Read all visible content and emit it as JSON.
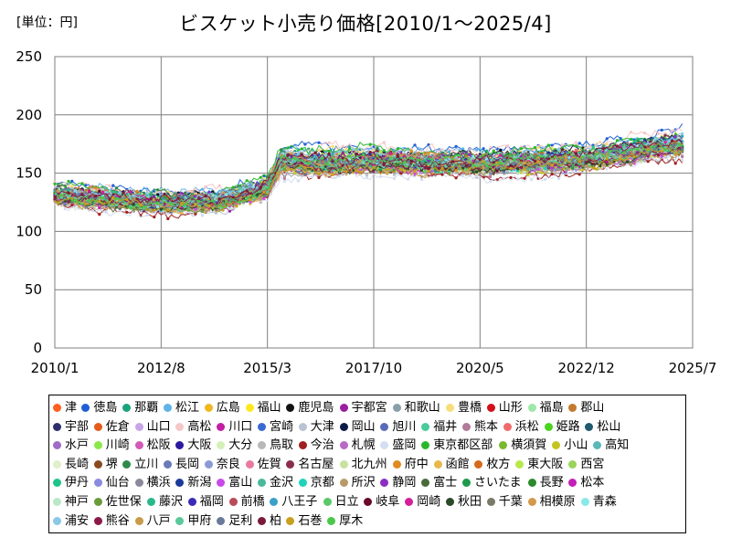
{
  "unit_label": "[単位：円]",
  "title": "ビスケット小売り価格[2010/1〜2025/4]",
  "chart_data": {
    "type": "line",
    "title": "ビスケット小売り価格[2010/1〜2025/4]",
    "unit": "円",
    "x_range": [
      "2010/1",
      "2025/7"
    ],
    "x_tick_labels": [
      "2010/1",
      "2012/8",
      "2015/3",
      "2017/10",
      "2020/5",
      "2022/12",
      "2025/7"
    ],
    "y_range": [
      0,
      250
    ],
    "y_tick_labels": [
      "0",
      "50",
      "100",
      "150",
      "200",
      "250"
    ],
    "grid": true,
    "legend_position": "bottom",
    "series_level_anchors": [
      {
        "date": "2010/1",
        "value": 131
      },
      {
        "date": "2012/8",
        "value": 124
      },
      {
        "date": "2014/1",
        "value": 126
      },
      {
        "date": "2015/3",
        "value": 137
      },
      {
        "date": "2015/7",
        "value": 159
      },
      {
        "date": "2017/10",
        "value": 160
      },
      {
        "date": "2020/5",
        "value": 158
      },
      {
        "date": "2022/12",
        "value": 162
      },
      {
        "date": "2025/4",
        "value": 174
      }
    ],
    "series": [
      {
        "name": "津",
        "color": "#ff5f1f",
        "offset": 3
      },
      {
        "name": "徳島",
        "color": "#1f5fd6",
        "offset": 10
      },
      {
        "name": "那覇",
        "color": "#1aa37a",
        "offset": 4
      },
      {
        "name": "松江",
        "color": "#5fb3e8",
        "offset": 7
      },
      {
        "name": "広島",
        "color": "#f0b81f",
        "offset": 2
      },
      {
        "name": "福山",
        "color": "#ffe81f",
        "offset": 1
      },
      {
        "name": "鹿児島",
        "color": "#111111",
        "offset": 5
      },
      {
        "name": "宇都宮",
        "color": "#9a1fa0",
        "offset": -2
      },
      {
        "name": "和歌山",
        "color": "#8aa0a8",
        "offset": -3
      },
      {
        "name": "豊橋",
        "color": "#f7de7a",
        "offset": 6
      },
      {
        "name": "山形",
        "color": "#d4101a",
        "offset": 0
      },
      {
        "name": "福島",
        "color": "#9de8a8",
        "offset": 1
      },
      {
        "name": "郡山",
        "color": "#c47a2e",
        "offset": -4
      },
      {
        "name": "宇部",
        "color": "#2e2e6e",
        "offset": 2
      },
      {
        "name": "佐倉",
        "color": "#e65a1a",
        "offset": -1
      },
      {
        "name": "山口",
        "color": "#c9a4e8",
        "offset": 3
      },
      {
        "name": "高松",
        "color": "#f5c7c7",
        "offset": 9
      },
      {
        "name": "川口",
        "color": "#c41fa4",
        "offset": -3
      },
      {
        "name": "宮崎",
        "color": "#3a6ad4",
        "offset": 0
      },
      {
        "name": "大津",
        "color": "#b8c4d4",
        "offset": -5
      },
      {
        "name": "岡山",
        "color": "#0c1a4a",
        "offset": 4
      },
      {
        "name": "旭川",
        "color": "#5a6ab8",
        "offset": 1
      },
      {
        "name": "福井",
        "color": "#4acb9a",
        "offset": -2
      },
      {
        "name": "熊本",
        "color": "#b47a9a",
        "offset": -6
      },
      {
        "name": "浜松",
        "color": "#f06a6a",
        "offset": 2
      },
      {
        "name": "姫路",
        "color": "#4ad41f",
        "offset": -1
      },
      {
        "name": "松山",
        "color": "#1f5a6e",
        "offset": 3
      },
      {
        "name": "水戸",
        "color": "#a06ac8",
        "offset": -3
      },
      {
        "name": "川崎",
        "color": "#8ae84a",
        "offset": 1
      },
      {
        "name": "松阪",
        "color": "#d45ab8",
        "offset": -2
      },
      {
        "name": "大阪",
        "color": "#2a1aa0",
        "offset": 0
      },
      {
        "name": "大分",
        "color": "#d4f0b8",
        "offset": -4
      },
      {
        "name": "鳥取",
        "color": "#b8b8b8",
        "offset": -5
      },
      {
        "name": "今治",
        "color": "#a01f1f",
        "offset": -7
      },
      {
        "name": "札幌",
        "color": "#b86ac4",
        "offset": 1
      },
      {
        "name": "盛岡",
        "color": "#d4def0",
        "offset": -8
      },
      {
        "name": "東京都区部",
        "color": "#2ab82a",
        "offset": 8
      },
      {
        "name": "横須賀",
        "color": "#7ab82e",
        "offset": 2
      },
      {
        "name": "小山",
        "color": "#c4c41f",
        "offset": -3
      },
      {
        "name": "高知",
        "color": "#5ab8b8",
        "offset": 0
      },
      {
        "name": "長崎",
        "color": "#e0f0c8",
        "offset": -1
      },
      {
        "name": "堺",
        "color": "#8a4a1f",
        "offset": -2
      },
      {
        "name": "立川",
        "color": "#2e8a4a",
        "offset": 4
      },
      {
        "name": "長岡",
        "color": "#6a7ab8",
        "offset": -3
      },
      {
        "name": "奈良",
        "color": "#8a9ad4",
        "offset": 1
      },
      {
        "name": "佐賀",
        "color": "#e87aa0",
        "offset": -1
      },
      {
        "name": "名古屋",
        "color": "#8a2e4a",
        "offset": 2
      },
      {
        "name": "北九州",
        "color": "#c8e0a0",
        "offset": -2
      },
      {
        "name": "府中",
        "color": "#e08a1f",
        "offset": 3
      },
      {
        "name": "函館",
        "color": "#e8b84a",
        "offset": -4
      },
      {
        "name": "枚方",
        "color": "#d46a1a",
        "offset": 0
      },
      {
        "name": "東大阪",
        "color": "#b8e84a",
        "offset": 1
      },
      {
        "name": "西宮",
        "color": "#9ad45a",
        "offset": -2
      },
      {
        "name": "伊丹",
        "color": "#1fc48a",
        "offset": 2
      },
      {
        "name": "仙台",
        "color": "#8a8ae0",
        "offset": -1
      },
      {
        "name": "横浜",
        "color": "#8a8a9a",
        "offset": 0
      },
      {
        "name": "新潟",
        "color": "#1a3a9a",
        "offset": 3
      },
      {
        "name": "富山",
        "color": "#c84ae8",
        "offset": -3
      },
      {
        "name": "金沢",
        "color": "#4ab89a",
        "offset": 1
      },
      {
        "name": "京都",
        "color": "#1fd4b8",
        "offset": -2
      },
      {
        "name": "所沢",
        "color": "#b89a6a",
        "offset": -4
      },
      {
        "name": "静岡",
        "color": "#8a2ec4",
        "offset": 2
      },
      {
        "name": "富士",
        "color": "#4a6a3a",
        "offset": -1
      },
      {
        "name": "さいたま",
        "color": "#1f9a4a",
        "offset": 0
      },
      {
        "name": "長野",
        "color": "#2a8a2a",
        "offset": 1
      },
      {
        "name": "松本",
        "color": "#c41fb8",
        "offset": -2
      },
      {
        "name": "神戸",
        "color": "#b8e8c8",
        "offset": 2
      },
      {
        "name": "佐世保",
        "color": "#6a9a3a",
        "offset": -3
      },
      {
        "name": "藤沢",
        "color": "#2ab88a",
        "offset": 1
      },
      {
        "name": "福岡",
        "color": "#3a2ab8",
        "offset": 0
      },
      {
        "name": "前橋",
        "color": "#b84a5a",
        "offset": -1
      },
      {
        "name": "八王子",
        "color": "#3aa0c8",
        "offset": 2
      },
      {
        "name": "日立",
        "color": "#5ac86a",
        "offset": -2
      },
      {
        "name": "岐阜",
        "color": "#6a0a2a",
        "offset": 0
      },
      {
        "name": "岡崎",
        "color": "#d41f9a",
        "offset": 1
      },
      {
        "name": "秋田",
        "color": "#2a4a2a",
        "offset": -3
      },
      {
        "name": "千葉",
        "color": "#7a7a6a",
        "offset": 2
      },
      {
        "name": "相模原",
        "color": "#d49a4a",
        "offset": -1
      },
      {
        "name": "青森",
        "color": "#8ae8e8",
        "offset": 0
      },
      {
        "name": "浦安",
        "color": "#8ac8e8",
        "offset": 4
      },
      {
        "name": "熊谷",
        "color": "#8a1a4a",
        "offset": -2
      },
      {
        "name": "八戸",
        "color": "#c89a4a",
        "offset": 1
      },
      {
        "name": "甲府",
        "color": "#5ac89a",
        "offset": -1
      },
      {
        "name": "足利",
        "color": "#6a7a9a",
        "offset": 0
      },
      {
        "name": "柏",
        "color": "#7a1a3a",
        "offset": 2
      },
      {
        "name": "石巻",
        "color": "#c8a01f",
        "offset": -3
      },
      {
        "name": "厚木",
        "color": "#4ac84a",
        "offset": 1
      }
    ]
  }
}
